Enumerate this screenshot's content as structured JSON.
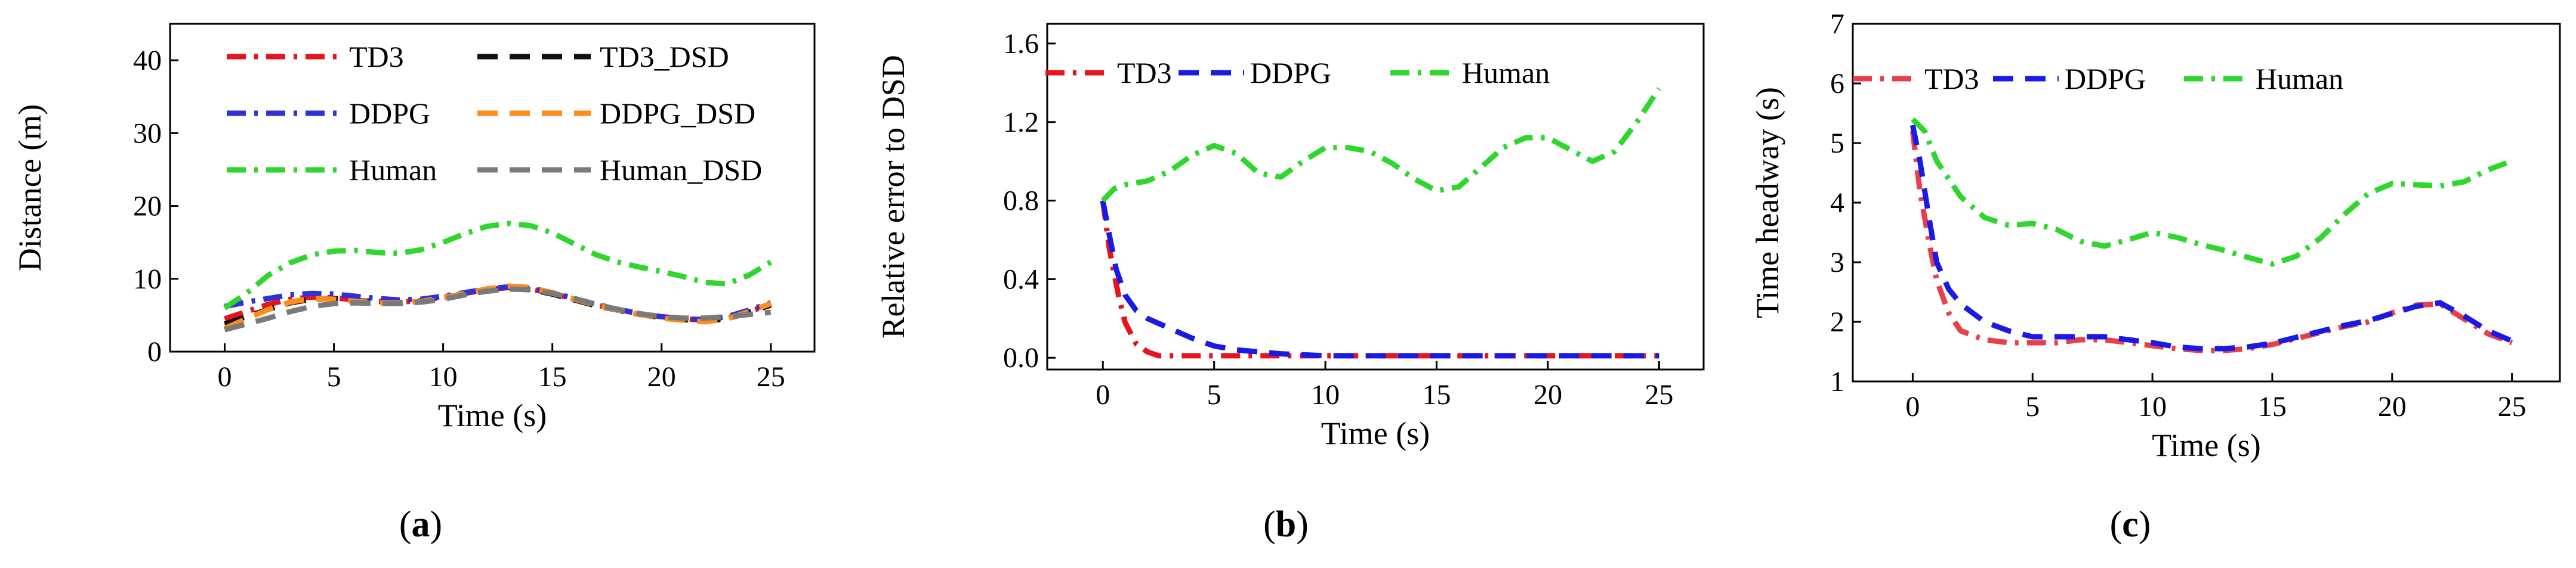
{
  "chart_data": [
    {
      "type": "line",
      "caption": "(a)",
      "caption_pre": "(",
      "caption_letter": "a",
      "caption_post": ")",
      "title": "",
      "xlabel": "Time (s)",
      "ylabel": "Distance (m)",
      "xlim": [
        -2.5,
        27
      ],
      "ylim": [
        0,
        45
      ],
      "xticks": [
        0,
        5,
        10,
        15,
        20,
        25
      ],
      "yticks": [
        0,
        10,
        20,
        30,
        40
      ],
      "xtick_labels": [
        "0",
        "5",
        "10",
        "15",
        "20",
        "25"
      ],
      "ytick_labels": [
        "0",
        "10",
        "20",
        "30",
        "40"
      ],
      "legend": {
        "columns": 2,
        "placement": "top"
      },
      "series": [
        {
          "name": "TD3",
          "color": "#e8141d",
          "dash": "dashdot",
          "x": [
            0,
            1,
            2,
            3,
            4,
            5,
            6,
            7,
            8,
            9,
            10,
            11,
            12,
            13,
            14,
            15,
            16,
            17,
            18,
            19,
            20,
            21,
            22,
            23,
            24,
            25
          ],
          "y": [
            4.5,
            5.5,
            6.5,
            7.2,
            7.5,
            7.4,
            7.1,
            6.9,
            6.8,
            7.0,
            7.5,
            8.0,
            8.5,
            8.8,
            8.6,
            8.0,
            7.2,
            6.4,
            5.8,
            5.2,
            4.8,
            4.5,
            4.3,
            4.6,
            5.5,
            6.5
          ]
        },
        {
          "name": "TD3_DSD",
          "color": "#111111",
          "dash": "dash",
          "x": [
            0,
            1,
            2,
            3,
            4,
            5,
            6,
            7,
            8,
            9,
            10,
            11,
            12,
            13,
            14,
            15,
            16,
            17,
            18,
            19,
            20,
            21,
            22,
            23,
            24,
            25
          ],
          "y": [
            3.8,
            4.8,
            5.8,
            6.7,
            7.2,
            7.3,
            7.0,
            6.8,
            6.7,
            6.9,
            7.4,
            7.9,
            8.4,
            8.7,
            8.5,
            7.9,
            7.1,
            6.3,
            5.7,
            5.1,
            4.7,
            4.4,
            4.2,
            4.5,
            5.4,
            6.4
          ]
        },
        {
          "name": "DDPG",
          "color": "#3030d8",
          "dash": "dashdot",
          "x": [
            0,
            1,
            2,
            3,
            4,
            5,
            6,
            7,
            8,
            9,
            10,
            11,
            12,
            13,
            14,
            15,
            16,
            17,
            18,
            19,
            20,
            21,
            22,
            23,
            24,
            25
          ],
          "y": [
            6.2,
            6.8,
            7.3,
            7.8,
            8.0,
            7.9,
            7.6,
            7.3,
            7.1,
            7.2,
            7.6,
            8.1,
            8.6,
            8.9,
            8.7,
            8.1,
            7.3,
            6.5,
            5.8,
            5.2,
            4.8,
            4.5,
            4.4,
            4.8,
            5.7,
            6.7
          ]
        },
        {
          "name": "DDPG_DSD",
          "color": "#ff8c1a",
          "dash": "dash",
          "x": [
            0,
            1,
            2,
            3,
            4,
            5,
            6,
            7,
            8,
            9,
            10,
            11,
            12,
            13,
            14,
            15,
            16,
            17,
            18,
            19,
            20,
            21,
            22,
            23,
            24,
            25
          ],
          "y": [
            3.2,
            4.5,
            5.8,
            6.8,
            7.3,
            7.2,
            6.9,
            6.7,
            6.7,
            6.9,
            7.4,
            8.0,
            8.6,
            9.0,
            8.8,
            8.1,
            7.2,
            6.4,
            5.7,
            5.1,
            4.6,
            4.3,
            4.1,
            4.5,
            5.5,
            6.6
          ]
        },
        {
          "name": "Human",
          "color": "#2ed62e",
          "dash": "dashdot",
          "x": [
            0,
            1,
            2,
            3,
            4,
            5,
            6,
            7,
            8,
            9,
            10,
            11,
            12,
            13,
            14,
            15,
            16,
            17,
            18,
            19,
            20,
            21,
            22,
            23,
            24,
            25
          ],
          "y": [
            6.0,
            8.0,
            10.5,
            12.2,
            13.3,
            13.8,
            13.9,
            13.6,
            13.5,
            14.0,
            15.0,
            16.2,
            17.2,
            17.6,
            17.3,
            16.3,
            14.8,
            13.3,
            12.3,
            11.6,
            11.0,
            10.3,
            9.5,
            9.3,
            10.5,
            12.3
          ]
        },
        {
          "name": "Human_DSD",
          "color": "#7a7a7a",
          "dash": "dash",
          "x": [
            0,
            1,
            2,
            3,
            4,
            5,
            6,
            7,
            8,
            9,
            10,
            11,
            12,
            13,
            14,
            15,
            16,
            17,
            18,
            19,
            20,
            21,
            22,
            23,
            24,
            25
          ],
          "y": [
            3.0,
            3.8,
            4.6,
            5.5,
            6.2,
            6.6,
            6.7,
            6.6,
            6.6,
            6.8,
            7.2,
            7.8,
            8.3,
            8.6,
            8.5,
            8.0,
            7.3,
            6.5,
            5.8,
            5.2,
            4.8,
            4.6,
            4.6,
            4.8,
            5.1,
            5.4
          ]
        }
      ]
    },
    {
      "type": "line",
      "caption": "(b)",
      "caption_pre": "(",
      "caption_letter": "b",
      "caption_post": ")",
      "title": "",
      "xlabel": "Time (s)",
      "ylabel": "Relative error to DSD",
      "xlim": [
        -2.5,
        27
      ],
      "ylim": [
        -0.06,
        1.7
      ],
      "xticks": [
        0,
        5,
        10,
        15,
        20,
        25
      ],
      "yticks": [
        0.0,
        0.4,
        0.8,
        1.2,
        1.6
      ],
      "xtick_labels": [
        "0",
        "5",
        "10",
        "15",
        "20",
        "25"
      ],
      "ytick_labels": [
        "0.0",
        "0.4",
        "0.8",
        "1.2",
        "1.6"
      ],
      "legend": {
        "columns": 3,
        "placement": "top"
      },
      "series": [
        {
          "name": "TD3",
          "color": "#e8141d",
          "dash": "dashdot",
          "x": [
            0,
            0.3,
            0.7,
            1.0,
            1.5,
            2.0,
            2.5,
            3,
            4,
            5,
            7,
            10,
            12,
            15,
            17,
            20,
            22,
            24,
            25
          ],
          "y": [
            0.8,
            0.55,
            0.32,
            0.18,
            0.07,
            0.03,
            0.01,
            0.01,
            0.01,
            0.01,
            0.01,
            0.01,
            0.01,
            0.01,
            0.01,
            0.01,
            0.01,
            0.01,
            0.01
          ]
        },
        {
          "name": "DDPG",
          "color": "#1a1ae6",
          "dash": "dash",
          "x": [
            0,
            0.3,
            0.6,
            1.0,
            1.5,
            2,
            3,
            4,
            5,
            6,
            7,
            8,
            10,
            12,
            15,
            17,
            20,
            22,
            24,
            25
          ],
          "y": [
            0.8,
            0.62,
            0.45,
            0.32,
            0.24,
            0.2,
            0.15,
            0.1,
            0.06,
            0.04,
            0.03,
            0.02,
            0.01,
            0.01,
            0.01,
            0.01,
            0.01,
            0.01,
            0.01,
            0.01
          ]
        },
        {
          "name": "Human",
          "color": "#2ed62e",
          "dash": "dashdot",
          "x": [
            0,
            0.5,
            1,
            2,
            3,
            4,
            5,
            6,
            7,
            8,
            9,
            10,
            11,
            12,
            13,
            14,
            15,
            16,
            17,
            18,
            19,
            20,
            21,
            22,
            23,
            24,
            25
          ],
          "y": [
            0.8,
            0.86,
            0.88,
            0.9,
            0.95,
            1.03,
            1.08,
            1.04,
            0.94,
            0.92,
            1.0,
            1.07,
            1.07,
            1.05,
            0.99,
            0.91,
            0.85,
            0.87,
            0.97,
            1.07,
            1.12,
            1.12,
            1.06,
            1.0,
            1.05,
            1.2,
            1.37
          ]
        }
      ]
    },
    {
      "type": "line",
      "caption": "(c)",
      "caption_pre": "(",
      "caption_letter": "c",
      "caption_post": ")",
      "title": "",
      "xlabel": "Time (s)",
      "ylabel": "Time headway (s)",
      "xlim": [
        -2.5,
        27
      ],
      "ylim": [
        1,
        7
      ],
      "xticks": [
        0,
        5,
        10,
        15,
        20,
        25
      ],
      "yticks": [
        1,
        2,
        3,
        4,
        5,
        6,
        7
      ],
      "xtick_labels": [
        "0",
        "5",
        "10",
        "15",
        "20",
        "25"
      ],
      "ytick_labels": [
        "1",
        "2",
        "3",
        "4",
        "5",
        "6",
        "7"
      ],
      "legend": {
        "columns": 3,
        "placement": "top"
      },
      "series": [
        {
          "name": "TD3",
          "color": "#e8404a",
          "dash": "dashdot",
          "x": [
            0,
            0.3,
            0.7,
            1,
            1.5,
            2,
            3,
            4,
            5,
            6,
            7,
            8,
            9,
            10,
            11,
            12,
            13,
            14,
            15,
            16,
            17,
            18,
            19,
            20,
            21,
            22,
            23,
            24,
            25
          ],
          "y": [
            5.2,
            4.2,
            3.3,
            2.7,
            2.15,
            1.85,
            1.7,
            1.65,
            1.65,
            1.65,
            1.7,
            1.7,
            1.65,
            1.6,
            1.55,
            1.52,
            1.52,
            1.55,
            1.62,
            1.72,
            1.82,
            1.92,
            2.0,
            2.15,
            2.28,
            2.3,
            2.05,
            1.8,
            1.65
          ]
        },
        {
          "name": "DDPG",
          "color": "#1a1ae6",
          "dash": "dash",
          "x": [
            0,
            0.3,
            0.7,
            1,
            1.5,
            2,
            3,
            4,
            5,
            6,
            7,
            8,
            9,
            10,
            11,
            12,
            13,
            14,
            15,
            16,
            17,
            18,
            19,
            20,
            21,
            22,
            23,
            24,
            25
          ],
          "y": [
            5.3,
            4.7,
            3.7,
            3.0,
            2.55,
            2.3,
            2.0,
            1.85,
            1.75,
            1.75,
            1.75,
            1.75,
            1.7,
            1.65,
            1.58,
            1.55,
            1.55,
            1.58,
            1.64,
            1.74,
            1.84,
            1.94,
            2.02,
            2.14,
            2.26,
            2.32,
            2.1,
            1.85,
            1.68
          ]
        },
        {
          "name": "Human",
          "color": "#2ed62e",
          "dash": "dashdot",
          "x": [
            0,
            0.5,
            1,
            2,
            3,
            4,
            5,
            6,
            7,
            8,
            9,
            10,
            11,
            12,
            13,
            14,
            15,
            16,
            17,
            18,
            19,
            20,
            21,
            22,
            23,
            24,
            25
          ],
          "y": [
            5.4,
            5.2,
            4.7,
            4.1,
            3.75,
            3.62,
            3.65,
            3.55,
            3.35,
            3.27,
            3.38,
            3.5,
            3.42,
            3.3,
            3.2,
            3.08,
            2.97,
            3.1,
            3.4,
            3.8,
            4.15,
            4.32,
            4.3,
            4.28,
            4.35,
            4.55,
            4.7
          ]
        }
      ]
    }
  ]
}
